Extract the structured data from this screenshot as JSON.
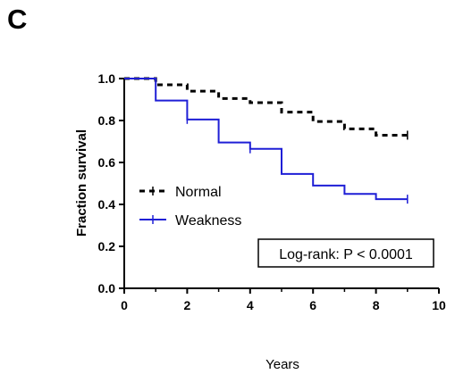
{
  "panel_label": "C",
  "chart_data": {
    "type": "line",
    "step": true,
    "xlabel": "Years",
    "ylabel": "Fraction survival",
    "xlim": [
      0,
      10
    ],
    "ylim": [
      0.0,
      1.0
    ],
    "x_ticks": [
      0,
      2,
      4,
      6,
      8,
      10
    ],
    "y_ticks": [
      0.0,
      0.2,
      0.4,
      0.6,
      0.8,
      1.0
    ],
    "x_tick_labels": [
      "0",
      "2",
      "4",
      "6",
      "8",
      "10"
    ],
    "y_tick_labels": [
      "0.0",
      "0.2",
      "0.4",
      "0.6",
      "0.8",
      "1.0"
    ],
    "grid": false,
    "legend_position": "center-left",
    "series": [
      {
        "name": "Normal",
        "color": "#000000",
        "dash": "dashed",
        "x": [
          0,
          1,
          2,
          3,
          4,
          5,
          6,
          7,
          8,
          9
        ],
        "y": [
          1.0,
          0.97,
          0.94,
          0.905,
          0.885,
          0.84,
          0.795,
          0.76,
          0.73,
          0.73
        ],
        "censor_x": [
          9
        ]
      },
      {
        "name": "Weakness",
        "color": "#1f1fd6",
        "dash": "solid",
        "x": [
          0,
          1,
          2,
          3,
          4,
          5,
          6,
          7,
          8,
          9
        ],
        "y": [
          1.0,
          0.895,
          0.805,
          0.695,
          0.665,
          0.545,
          0.49,
          0.45,
          0.425,
          0.425
        ],
        "censor_x": [
          2,
          4,
          9
        ]
      }
    ],
    "annotation": "Log-rank: P < 0.0001"
  }
}
